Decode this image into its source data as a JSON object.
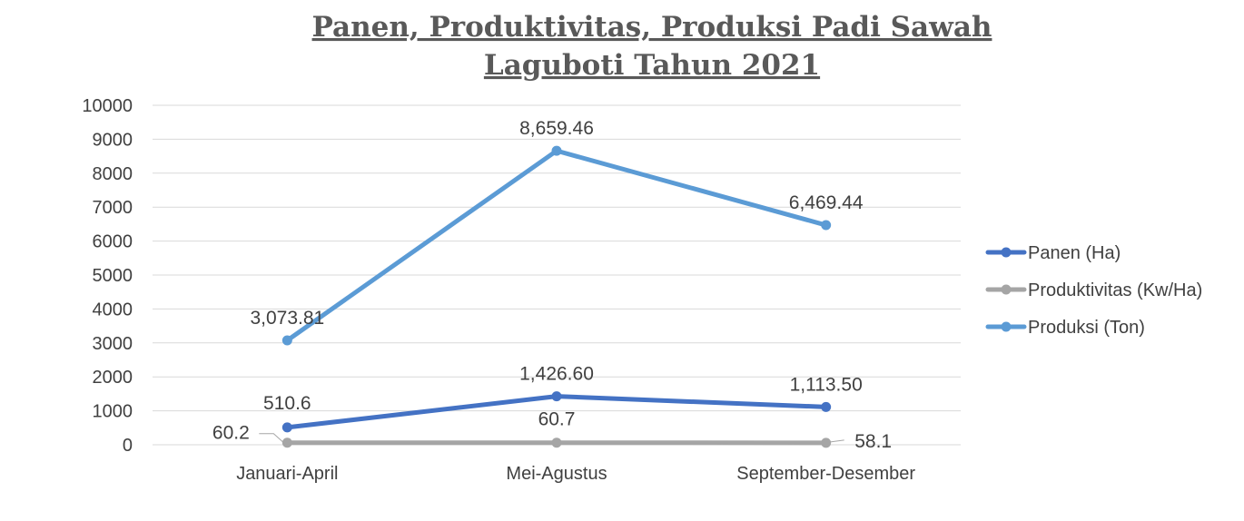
{
  "chart_data": {
    "type": "line",
    "title_lines": [
      "Panen, Produktivitas, Produksi Padi Sawah",
      "Laguboti Tahun 2021"
    ],
    "xlabel": "",
    "ylabel": "",
    "categories": [
      "Januari-April",
      "Mei-Agustus",
      "September-Desember"
    ],
    "ylim": [
      0,
      10000
    ],
    "yticks": [
      "0",
      "1000",
      "2000",
      "3000",
      "4000",
      "5000",
      "6000",
      "7000",
      "8000",
      "9000",
      "10000"
    ],
    "grid": true,
    "legend_position": "right",
    "series": [
      {
        "name": "Panen (Ha)",
        "color": "#4472c4",
        "values": [
          510.6,
          1426.6,
          1113.5
        ],
        "labels": [
          "510.6",
          "1,426.60",
          "1,113.50"
        ]
      },
      {
        "name": "Produktivitas (Kw/Ha)",
        "color": "#a5a5a5",
        "values": [
          60.2,
          60.7,
          58.1
        ],
        "labels": [
          "60.2",
          "60.7",
          "58.1"
        ]
      },
      {
        "name": "Produksi (Ton)",
        "color": "#5b9bd5",
        "values": [
          3073.81,
          8659.46,
          6469.44
        ],
        "labels": [
          "3,073.81",
          "8,659.46",
          "6,469.44"
        ]
      }
    ]
  }
}
